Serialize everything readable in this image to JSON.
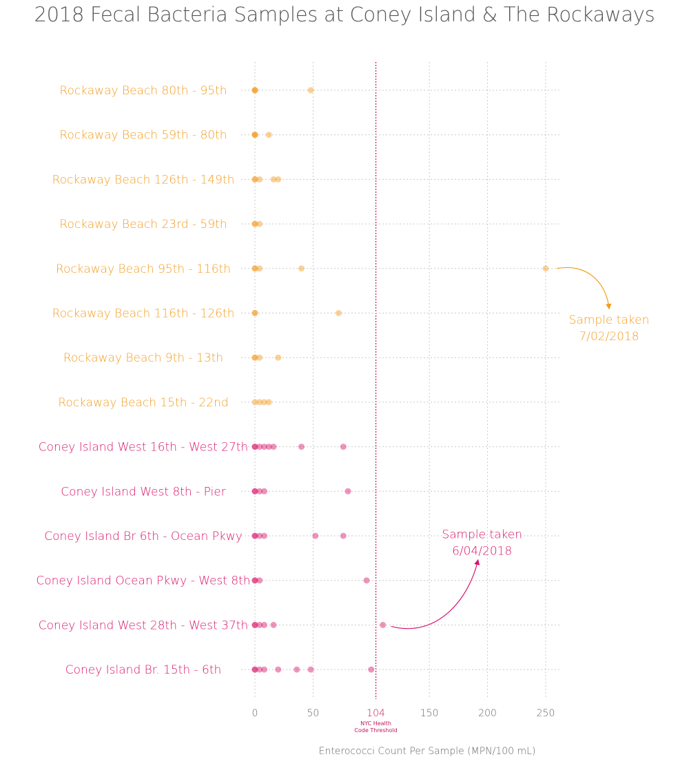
{
  "title": "2018 Fecal Bacteria Samples at Coney Island & The Rockaways",
  "colors": {
    "rockaway": "#f39c1f",
    "coney": "#d9156b",
    "grid": "#c9c9c9",
    "threshold": "#c2185b",
    "text_muted": "#666666"
  },
  "chart_data": {
    "type": "scatter",
    "title": "2018 Fecal Bacteria Samples at Coney Island & The Rockaways",
    "xlabel": "Enterococci Count Per Sample (MPN/100 mL)",
    "ylabel": "",
    "xlim": [
      -10,
      260
    ],
    "x_ticks": [
      "0",
      "50",
      "150",
      "200",
      "250"
    ],
    "x_tick_values": [
      0,
      50,
      150,
      200,
      250
    ],
    "grid": true,
    "threshold": {
      "value": 104,
      "label": "104",
      "sublabel_line1": "NYC Health",
      "sublabel_line2": "Code Threshold"
    },
    "categories": [
      {
        "name": "Rockaway Beach 80th - 95th",
        "group": "rockaway",
        "values": [
          0,
          0,
          0,
          48
        ]
      },
      {
        "name": "Rockaway Beach 59th - 80th",
        "group": "rockaway",
        "values": [
          0,
          0,
          0,
          12
        ]
      },
      {
        "name": "Rockaway Beach 126th - 149th",
        "group": "rockaway",
        "values": [
          0,
          0,
          4,
          16,
          20
        ]
      },
      {
        "name": "Rockaway Beach 23rd - 59th",
        "group": "rockaway",
        "values": [
          0,
          0,
          4
        ]
      },
      {
        "name": "Rockaway Beach 95th - 116th",
        "group": "rockaway",
        "values": [
          0,
          0,
          4,
          40,
          250
        ]
      },
      {
        "name": "Rockaway Beach 116th - 126th",
        "group": "rockaway",
        "values": [
          0,
          0,
          72
        ]
      },
      {
        "name": "Rockaway Beach 9th - 13th",
        "group": "rockaway",
        "values": [
          0,
          0,
          4,
          20
        ]
      },
      {
        "name": "Rockaway Beach 15th - 22nd",
        "group": "rockaway",
        "values": [
          0,
          4,
          8,
          12
        ]
      },
      {
        "name": "Coney Island West 16th - West 27th",
        "group": "coney",
        "values": [
          0,
          0,
          4,
          8,
          12,
          16,
          40,
          76
        ]
      },
      {
        "name": "Coney Island West 8th - Pier",
        "group": "coney",
        "values": [
          0,
          0,
          4,
          8,
          80
        ]
      },
      {
        "name": "Coney Island Br 6th - Ocean Pkwy",
        "group": "coney",
        "values": [
          0,
          0,
          4,
          8,
          52,
          76
        ]
      },
      {
        "name": "Coney Island Ocean Pkwy - West 8th",
        "group": "coney",
        "values": [
          0,
          0,
          4,
          96
        ]
      },
      {
        "name": "Coney Island West 28th - West 37th",
        "group": "coney",
        "values": [
          0,
          0,
          4,
          8,
          16,
          110
        ]
      },
      {
        "name": "Coney Island Br. 15th - 6th",
        "group": "coney",
        "values": [
          0,
          0,
          4,
          8,
          20,
          36,
          48,
          100
        ]
      }
    ],
    "annotations": [
      {
        "group": "rockaway",
        "line1": "Sample taken",
        "line2": "7/02/2018",
        "target_category": 4,
        "target_value": 250
      },
      {
        "group": "coney",
        "line1": "Sample taken",
        "line2": "6/04/2018",
        "target_category": 12,
        "target_value": 110
      }
    ]
  }
}
